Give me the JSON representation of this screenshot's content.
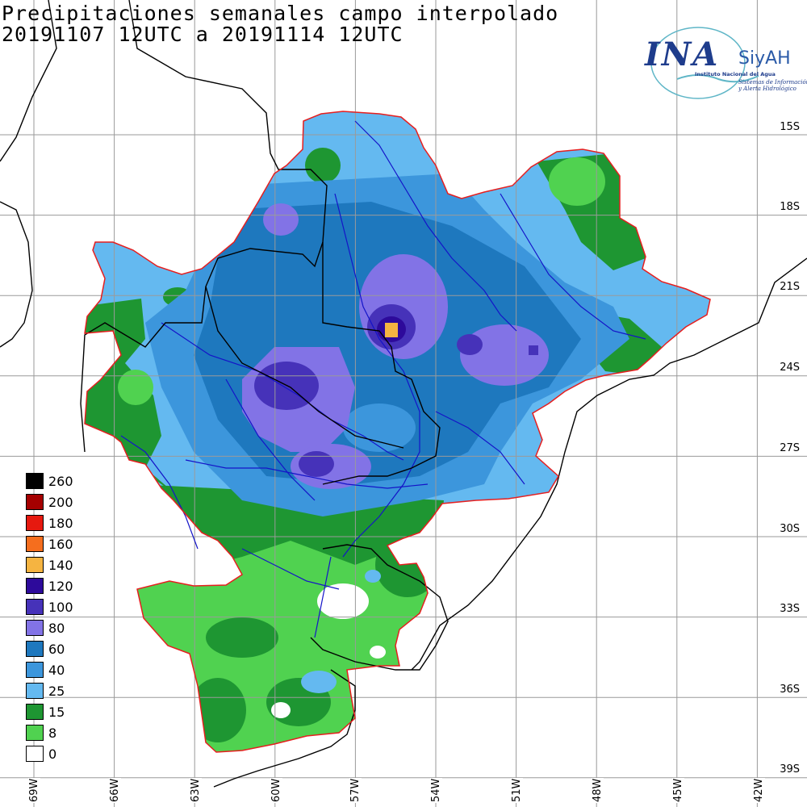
{
  "title": {
    "line1": "Precipitaciones semanales campo interpolado",
    "line2": "20191107 12UTC a 20191114 12UTC"
  },
  "logo": {
    "name": "INA",
    "product": "SiyAH",
    "org": "Instituto Nacional del Agua",
    "tagline1": "Sistemas de Información",
    "tagline2": "y Alerta Hidrológico"
  },
  "lat_labels": [
    "15S",
    "18S",
    "21S",
    "24S",
    "27S",
    "30S",
    "33S",
    "36S",
    "39S"
  ],
  "lon_labels": [
    "69W",
    "66W",
    "63W",
    "60W",
    "57W",
    "54W",
    "51W",
    "48W",
    "45W",
    "42W"
  ],
  "legend": [
    {
      "label": "260",
      "color": "#000000"
    },
    {
      "label": "200",
      "color": "#a50000"
    },
    {
      "label": "180",
      "color": "#e6190f"
    },
    {
      "label": "160",
      "color": "#f56e1e"
    },
    {
      "label": "140",
      "color": "#f5b441"
    },
    {
      "label": "120",
      "color": "#2d0a9b"
    },
    {
      "label": "100",
      "color": "#4632b9"
    },
    {
      "label": "80",
      "color": "#8273e6"
    },
    {
      "label": "60",
      "color": "#1e78be"
    },
    {
      "label": "40",
      "color": "#3c96dc"
    },
    {
      "label": "25",
      "color": "#64b9f0"
    },
    {
      "label": "15",
      "color": "#1e9632"
    },
    {
      "label": "8",
      "color": "#50d250"
    },
    {
      "label": "0",
      "color": "#ffffff"
    }
  ],
  "colors": {
    "basin_border": "#e61e1e",
    "rivers": "#1414c8",
    "borders": "#000000",
    "grid": "#9a9a9a"
  }
}
